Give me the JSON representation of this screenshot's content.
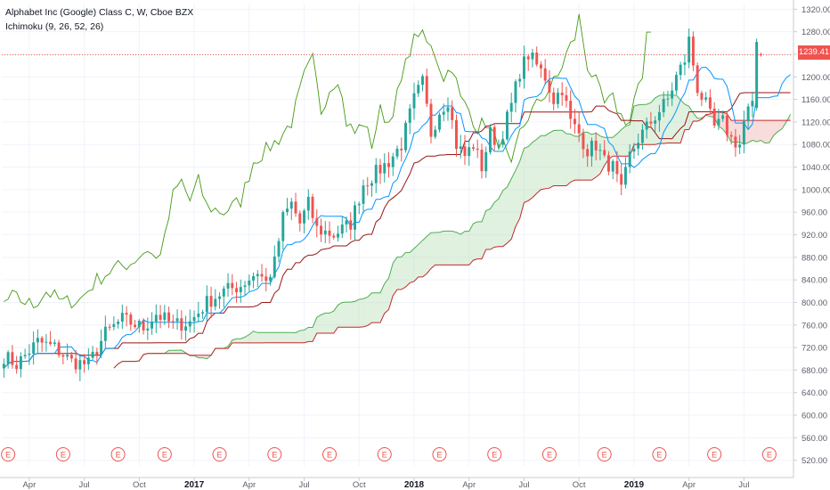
{
  "header": {
    "title": "Alphabet Inc (Google) Class C, W, Cboe BZX",
    "indicator": "Ichimoku (9, 26, 52, 26)"
  },
  "last_price": "1239.41",
  "colors": {
    "up": "#26a69a",
    "down": "#ef5350",
    "conversion": "#0496ff",
    "base": "#991515",
    "lagging": "#459915",
    "leadA": "#4caf50",
    "leadB": "#c62828",
    "cloud_up": "#a5d6a7",
    "cloud_down": "#ef9a9a",
    "axis_text": "#5d606b",
    "price_line": "#ef5350"
  },
  "chart_data": {
    "type": "candlestick",
    "y_axis": {
      "ticks": [
        "1320.00",
        "1280.00",
        "1240.00",
        "1200.00",
        "1160.00",
        "1120.00",
        "1080.00",
        "1040.00",
        "1000.00",
        "960.00",
        "920.00",
        "880.00",
        "840.00",
        "800.00",
        "760.00",
        "720.00",
        "680.00",
        "640.00",
        "600.00",
        "560.00",
        "520.00"
      ],
      "range": [
        510,
        1330
      ]
    },
    "x_axis": {
      "labels": [
        {
          "text": "Apr",
          "week": 6
        },
        {
          "text": "Jul",
          "week": 19
        },
        {
          "text": "Oct",
          "week": 32
        },
        {
          "text": "2017",
          "week": 45
        },
        {
          "text": "Apr",
          "week": 58
        },
        {
          "text": "Jul",
          "week": 71
        },
        {
          "text": "Oct",
          "week": 84
        },
        {
          "text": "2018",
          "week": 97
        },
        {
          "text": "Apr",
          "week": 110
        },
        {
          "text": "Jul",
          "week": 123
        },
        {
          "text": "Oct",
          "week": 136
        },
        {
          "text": "2019",
          "week": 149
        },
        {
          "text": "Apr",
          "week": 162
        },
        {
          "text": "Jul",
          "week": 175
        }
      ],
      "total_weeks": 187
    },
    "earnings_marker": "E",
    "earnings_weeks": [
      1,
      14,
      27,
      38,
      51,
      64,
      77,
      90,
      103,
      116,
      129,
      142,
      155,
      168,
      181
    ],
    "anchors": [
      [
        0,
        705
      ],
      [
        3,
        690
      ],
      [
        8,
        730
      ],
      [
        12,
        720
      ],
      [
        16,
        695
      ],
      [
        20,
        690
      ],
      [
        24,
        745
      ],
      [
        28,
        770
      ],
      [
        33,
        755
      ],
      [
        36,
        780
      ],
      [
        40,
        760
      ],
      [
        44,
        765
      ],
      [
        48,
        800
      ],
      [
        52,
        820
      ],
      [
        56,
        830
      ],
      [
        60,
        855
      ],
      [
        62,
        835
      ],
      [
        64,
        870
      ],
      [
        66,
        950
      ],
      [
        68,
        975
      ],
      [
        70,
        940
      ],
      [
        72,
        975
      ],
      [
        74,
        930
      ],
      [
        78,
        920
      ],
      [
        82,
        940
      ],
      [
        85,
        1010
      ],
      [
        88,
        1030
      ],
      [
        91,
        1050
      ],
      [
        94,
        1080
      ],
      [
        97,
        1160
      ],
      [
        99,
        1190
      ],
      [
        101,
        1100
      ],
      [
        103,
        1140
      ],
      [
        105,
        1160
      ],
      [
        107,
        1080
      ],
      [
        109,
        1060
      ],
      [
        111,
        1080
      ],
      [
        113,
        1040
      ],
      [
        115,
        1100
      ],
      [
        117,
        1080
      ],
      [
        120,
        1150
      ],
      [
        122,
        1210
      ],
      [
        124,
        1240
      ],
      [
        126,
        1220
      ],
      [
        128,
        1200
      ],
      [
        130,
        1160
      ],
      [
        132,
        1180
      ],
      [
        134,
        1120
      ],
      [
        136,
        1100
      ],
      [
        138,
        1070
      ],
      [
        140,
        1080
      ],
      [
        142,
        1050
      ],
      [
        144,
        1040
      ],
      [
        146,
        995
      ],
      [
        148,
        1060
      ],
      [
        150,
        1090
      ],
      [
        153,
        1120
      ],
      [
        155,
        1140
      ],
      [
        157,
        1160
      ],
      [
        159,
        1200
      ],
      [
        161,
        1230
      ],
      [
        162,
        1265
      ],
      [
        164,
        1180
      ],
      [
        166,
        1150
      ],
      [
        168,
        1110
      ],
      [
        170,
        1120
      ],
      [
        172,
        1090
      ],
      [
        174,
        1080
      ],
      [
        175,
        1120
      ],
      [
        176,
        1140
      ],
      [
        177,
        1145
      ],
      [
        178,
        1239.41
      ],
      [
        179,
        1239.41
      ]
    ]
  }
}
